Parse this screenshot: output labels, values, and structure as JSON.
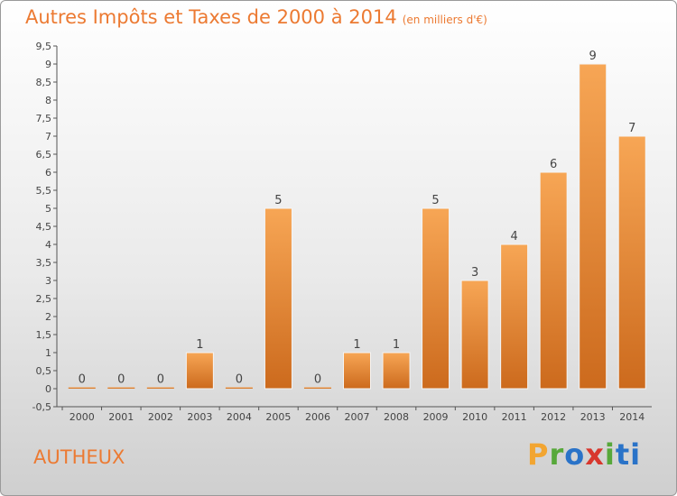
{
  "header": {
    "title": "Autres Impôts et Taxes de 2000 à 2014",
    "subtitle": "(en milliers d'€)"
  },
  "footer": {
    "commune": "AUTHEUX",
    "logo_letters": [
      "P",
      "r",
      "o",
      "x",
      "i",
      "ti"
    ]
  },
  "colors": {
    "accent": "#ec7a32",
    "bar_light": "#f7a655",
    "bar_dark": "#cc6a1d"
  },
  "chart_data": {
    "type": "bar",
    "title": "Autres Impôts et Taxes de 2000 à 2014",
    "subtitle": "(en milliers d'€)",
    "categories": [
      "2000",
      "2001",
      "2002",
      "2003",
      "2004",
      "2005",
      "2006",
      "2007",
      "2008",
      "2009",
      "2010",
      "2011",
      "2012",
      "2013",
      "2014"
    ],
    "values": [
      0,
      0,
      0,
      1,
      0,
      5,
      0,
      1,
      1,
      5,
      3,
      4,
      6,
      9,
      7
    ],
    "data_labels": [
      "0",
      "0",
      "0",
      "1",
      "0",
      "5",
      "0",
      "1",
      "1",
      "5",
      "3",
      "4",
      "6",
      "9",
      "7"
    ],
    "y_ticks": [
      "-0,5",
      "0",
      "0,5",
      "1",
      "1,5",
      "2",
      "2,5",
      "3",
      "3,5",
      "4",
      "4,5",
      "5",
      "5,5",
      "6",
      "6,5",
      "7",
      "7,5",
      "8",
      "8,5",
      "9",
      "9,5"
    ],
    "ylim": [
      -0.5,
      9.5
    ],
    "xlabel": "",
    "ylabel": "",
    "grid": false
  }
}
